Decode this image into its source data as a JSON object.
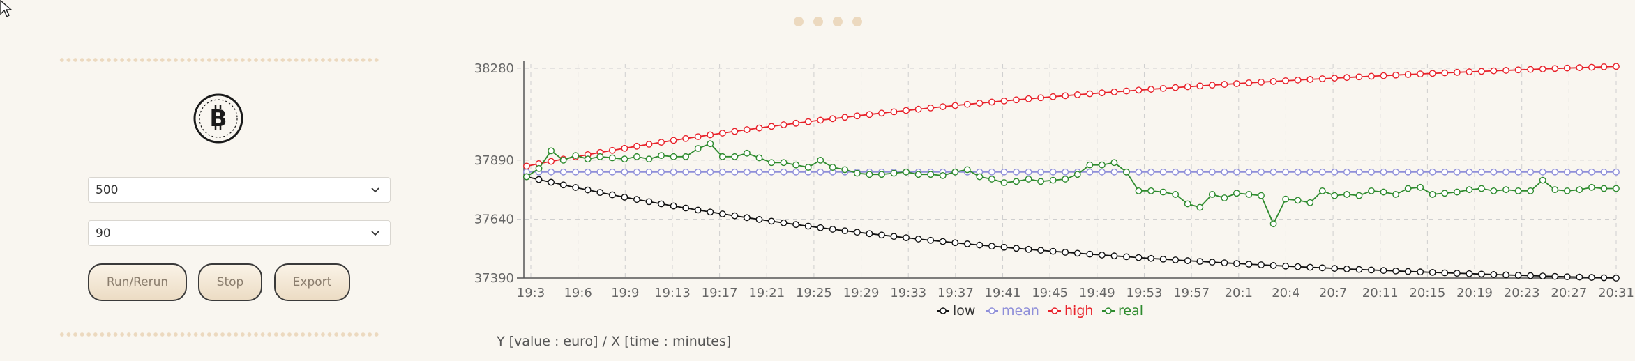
{
  "pager": {
    "dots": 4
  },
  "controls": {
    "logo_icon": "bitcoin-icon",
    "select_amount": "500",
    "select_period": "90",
    "buttons": {
      "run": "Run/Rerun",
      "stop": "Stop",
      "export": "Export"
    }
  },
  "caption": "Y [value : euro] / X [time : minutes]",
  "colors": {
    "low": "#111111",
    "mean": "#8f8fd9",
    "high": "#e8222a",
    "real": "#2e8b2e",
    "background": "#f9f6f0",
    "accent": "#ecd9bf"
  },
  "chart_data": {
    "type": "line",
    "x_ticks": [
      "19:3",
      "19:6",
      "19:9",
      "19:13",
      "19:17",
      "19:21",
      "19:25",
      "19:29",
      "19:33",
      "19:37",
      "19:41",
      "19:45",
      "19:49",
      "19:53",
      "19:57",
      "20:1",
      "20:4",
      "20:7",
      "20:11",
      "20:15",
      "20:19",
      "20:23",
      "20:27",
      "20:31"
    ],
    "y_ticks": [
      38280,
      37890,
      37640,
      37390
    ],
    "ylim": [
      37390,
      38280
    ],
    "grid": true,
    "legend_position": "bottom-center",
    "series": [
      {
        "name": "low",
        "color": "#111111",
        "start": 37820,
        "end": 37390,
        "shape": "decay"
      },
      {
        "name": "mean",
        "color": "#8f8fd9",
        "start": 37840,
        "end": 37840,
        "shape": "flat"
      },
      {
        "name": "high",
        "color": "#e8222a",
        "start": 37865,
        "end": 38288,
        "shape": "growth"
      },
      {
        "name": "real",
        "color": "#2e8b2e",
        "values": [
          37820,
          37855,
          37930,
          37890,
          37910,
          37895,
          37905,
          37900,
          37895,
          37905,
          37895,
          37910,
          37905,
          37905,
          37940,
          37960,
          37905,
          37905,
          37920,
          37900,
          37880,
          37880,
          37870,
          37860,
          37890,
          37860,
          37850,
          37835,
          37830,
          37830,
          37835,
          37840,
          37830,
          37830,
          37825,
          37840,
          37850,
          37820,
          37810,
          37795,
          37800,
          37810,
          37800,
          37805,
          37810,
          37830,
          37870,
          37870,
          37880,
          37840,
          37760,
          37760,
          37755,
          37745,
          37705,
          37690,
          37745,
          37730,
          37750,
          37745,
          37740,
          37620,
          37725,
          37720,
          37710,
          37760,
          37740,
          37745,
          37740,
          37760,
          37755,
          37745,
          37770,
          37775,
          37745,
          37750,
          37755,
          37765,
          37770,
          37760,
          37765,
          37760,
          37760,
          37805,
          37765,
          37760,
          37765,
          37775,
          37770,
          37770
        ]
      }
    ]
  }
}
